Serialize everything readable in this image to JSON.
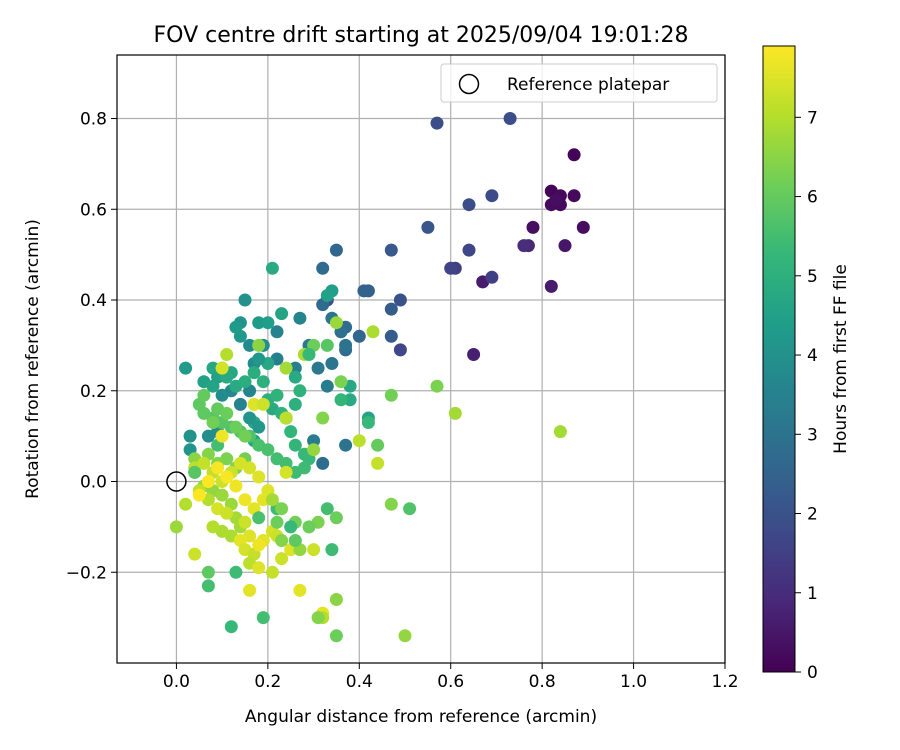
{
  "chart_data": {
    "type": "scatter",
    "title": "FOV centre drift starting at 2025/09/04 19:01:28",
    "xlabel": "Angular distance from reference (arcmin)",
    "ylabel": "Rotation from reference (arcmin)",
    "xlim": [
      -0.13,
      1.2
    ],
    "ylim": [
      -0.4,
      0.94
    ],
    "xticks": [
      0.0,
      0.2,
      0.4,
      0.6,
      0.8,
      1.0,
      1.2
    ],
    "xtick_labels": [
      "0.0",
      "0.2",
      "0.4",
      "0.6",
      "0.8",
      "1.0",
      "1.2"
    ],
    "yticks": [
      -0.2,
      0.0,
      0.2,
      0.4,
      0.6,
      0.8
    ],
    "ytick_labels": [
      "−0.2",
      "0.0",
      "0.2",
      "0.4",
      "0.6",
      "0.8"
    ],
    "grid": true,
    "legend": {
      "position": "top-right",
      "label": "Reference platepar"
    },
    "reference_point": {
      "x": 0.0,
      "y": 0.0
    },
    "colorbar": {
      "label": "Hours from first FF file",
      "colormap": "viridis",
      "range": [
        0,
        7.9
      ],
      "ticks": [
        0,
        1,
        2,
        3,
        4,
        5,
        6,
        7
      ],
      "tick_labels": [
        "0",
        "1",
        "2",
        "3",
        "4",
        "5",
        "6",
        "7"
      ]
    },
    "points_note_columns": [
      "x",
      "y",
      "hours"
    ],
    "points": [
      [
        0.87,
        0.72,
        0.1
      ],
      [
        0.82,
        0.64,
        0.1
      ],
      [
        0.84,
        0.63,
        0.2
      ],
      [
        0.87,
        0.63,
        0.2
      ],
      [
        0.82,
        0.61,
        0.2
      ],
      [
        0.84,
        0.61,
        0.2
      ],
      [
        0.83,
        0.62,
        0.3
      ],
      [
        0.89,
        0.56,
        0.3
      ],
      [
        0.85,
        0.52,
        0.5
      ],
      [
        0.78,
        0.56,
        0.3
      ],
      [
        0.77,
        0.52,
        0.9
      ],
      [
        0.76,
        0.52,
        1.0
      ],
      [
        0.82,
        0.43,
        0.6
      ],
      [
        0.67,
        0.44,
        0.6
      ],
      [
        0.65,
        0.28,
        0.7
      ],
      [
        0.69,
        0.45,
        1.5
      ],
      [
        0.61,
        0.47,
        1.5
      ],
      [
        0.6,
        0.47,
        1.6
      ],
      [
        0.64,
        0.51,
        1.7
      ],
      [
        0.69,
        0.63,
        1.8
      ],
      [
        0.64,
        0.61,
        1.9
      ],
      [
        0.57,
        0.79,
        1.9
      ],
      [
        0.73,
        0.8,
        1.9
      ],
      [
        0.55,
        0.56,
        2.1
      ],
      [
        0.47,
        0.51,
        2.2
      ],
      [
        0.49,
        0.4,
        2.0
      ],
      [
        0.49,
        0.29,
        1.7
      ],
      [
        0.47,
        0.38,
        2.3
      ],
      [
        0.47,
        0.32,
        2.3
      ],
      [
        0.42,
        0.42,
        2.4
      ],
      [
        0.41,
        0.42,
        2.5
      ],
      [
        0.4,
        0.32,
        2.6
      ],
      [
        0.35,
        0.51,
        2.6
      ],
      [
        0.32,
        0.47,
        2.7
      ],
      [
        0.33,
        0.4,
        1.9
      ],
      [
        0.32,
        0.39,
        2.7
      ],
      [
        0.37,
        0.34,
        2.8
      ],
      [
        0.36,
        0.33,
        2.9
      ],
      [
        0.37,
        0.29,
        2.8
      ],
      [
        0.37,
        0.3,
        3.0
      ],
      [
        0.34,
        0.36,
        3.1
      ],
      [
        0.34,
        0.26,
        3.1
      ],
      [
        0.31,
        0.25,
        3.2
      ],
      [
        0.33,
        0.21,
        3.3
      ],
      [
        0.37,
        0.08,
        3.0
      ],
      [
        0.32,
        0.04,
        2.8
      ],
      [
        0.3,
        0.09,
        3.3
      ],
      [
        0.29,
        0.3,
        3.2
      ],
      [
        0.27,
        0.36,
        3.6
      ],
      [
        0.26,
        0.25,
        3.4
      ],
      [
        0.24,
        0.14,
        3.5
      ],
      [
        0.22,
        0.33,
        3.5
      ],
      [
        0.22,
        0.27,
        3.4
      ],
      [
        0.21,
        0.47,
        4.8
      ],
      [
        0.15,
        0.4,
        4.0
      ],
      [
        0.19,
        0.3,
        3.9
      ],
      [
        0.17,
        0.26,
        3.8
      ],
      [
        0.16,
        0.3,
        3.8
      ],
      [
        0.14,
        0.35,
        4.1
      ],
      [
        0.14,
        0.32,
        4.2
      ],
      [
        0.13,
        0.34,
        4.3
      ],
      [
        0.18,
        0.35,
        4.3
      ],
      [
        0.2,
        0.35,
        4.4
      ],
      [
        0.23,
        0.37,
        4.6
      ],
      [
        0.34,
        0.42,
        4.4
      ],
      [
        0.33,
        0.41,
        4.5
      ],
      [
        0.42,
        0.14,
        4.6
      ],
      [
        0.42,
        0.13,
        5.3
      ],
      [
        0.38,
        0.18,
        4.8
      ],
      [
        0.38,
        0.21,
        4.7
      ],
      [
        0.36,
        0.18,
        5.2
      ],
      [
        0.24,
        0.14,
        4.9
      ],
      [
        0.21,
        0.16,
        4.8
      ],
      [
        0.17,
        0.13,
        4.7
      ],
      [
        0.17,
        0.09,
        4.6
      ],
      [
        0.16,
        0.2,
        3.6
      ],
      [
        0.14,
        0.17,
        3.5
      ],
      [
        0.12,
        0.2,
        3.7
      ],
      [
        0.1,
        0.19,
        3.8
      ],
      [
        0.09,
        0.11,
        3.9
      ],
      [
        0.07,
        0.1,
        3.9
      ],
      [
        0.03,
        0.1,
        4.0
      ],
      [
        0.03,
        0.07,
        4.1
      ],
      [
        0.02,
        0.25,
        4.3
      ],
      [
        0.06,
        0.22,
        4.5
      ],
      [
        0.08,
        0.21,
        4.6
      ],
      [
        0.08,
        0.25,
        4.7
      ],
      [
        0.09,
        0.23,
        4.5
      ],
      [
        0.12,
        0.24,
        4.7
      ],
      [
        0.1,
        0.25,
        4.7
      ],
      [
        0.11,
        0.23,
        4.8
      ],
      [
        0.13,
        0.21,
        4.8
      ],
      [
        0.15,
        0.22,
        4.9
      ],
      [
        0.17,
        0.24,
        4.9
      ],
      [
        0.19,
        0.22,
        5.0
      ],
      [
        0.2,
        0.18,
        5.0
      ],
      [
        0.22,
        0.19,
        5.1
      ],
      [
        0.23,
        0.15,
        5.1
      ],
      [
        0.25,
        0.11,
        5.2
      ],
      [
        0.26,
        0.08,
        5.2
      ],
      [
        0.28,
        0.06,
        5.3
      ],
      [
        0.29,
        0.05,
        5.3
      ],
      [
        0.28,
        0.03,
        5.4
      ],
      [
        0.26,
        0.02,
        5.4
      ],
      [
        0.24,
        0.04,
        5.5
      ],
      [
        0.22,
        0.05,
        5.5
      ],
      [
        0.2,
        0.07,
        5.6
      ],
      [
        0.18,
        0.08,
        5.6
      ],
      [
        0.16,
        0.1,
        5.7
      ],
      [
        0.14,
        0.11,
        5.7
      ],
      [
        0.12,
        0.12,
        5.7
      ],
      [
        0.1,
        0.13,
        5.8
      ],
      [
        0.08,
        0.14,
        5.8
      ],
      [
        0.06,
        0.15,
        5.9
      ],
      [
        0.05,
        0.17,
        5.9
      ],
      [
        0.06,
        0.19,
        6.0
      ],
      [
        0.09,
        0.16,
        6.0
      ],
      [
        0.11,
        0.15,
        6.1
      ],
      [
        0.13,
        0.12,
        6.1
      ],
      [
        0.15,
        0.1,
        6.2
      ],
      [
        0.15,
        0.05,
        6.2
      ],
      [
        0.13,
        0.03,
        6.3
      ],
      [
        0.11,
        0.05,
        6.3
      ],
      [
        0.09,
        0.04,
        6.4
      ],
      [
        0.07,
        0.06,
        6.4
      ],
      [
        0.04,
        0.05,
        6.5
      ],
      [
        0.04,
        0.02,
        6.5
      ],
      [
        0.06,
        -0.01,
        6.6
      ],
      [
        0.08,
        -0.02,
        6.6
      ],
      [
        0.1,
        -0.03,
        6.7
      ],
      [
        0.12,
        -0.05,
        6.7
      ],
      [
        0.13,
        -0.08,
        6.8
      ],
      [
        0.14,
        -0.1,
        6.8
      ],
      [
        0.12,
        -0.12,
        6.9
      ],
      [
        0.1,
        -0.11,
        6.9
      ],
      [
        0.08,
        -0.1,
        7.0
      ],
      [
        0.07,
        -0.04,
        7.0
      ],
      [
        0.05,
        -0.02,
        7.1
      ],
      [
        0.04,
        0.03,
        7.1
      ],
      [
        0.06,
        0.04,
        7.2
      ],
      [
        0.08,
        0.02,
        7.2
      ],
      [
        0.1,
        0.0,
        7.3
      ],
      [
        0.12,
        0.02,
        7.3
      ],
      [
        0.14,
        0.04,
        7.4
      ],
      [
        0.16,
        0.03,
        7.4
      ],
      [
        0.18,
        0.01,
        7.5
      ],
      [
        0.2,
        -0.02,
        7.5
      ],
      [
        0.19,
        -0.04,
        7.6
      ],
      [
        0.17,
        -0.06,
        7.6
      ],
      [
        0.15,
        -0.04,
        7.7
      ],
      [
        0.13,
        -0.01,
        7.7
      ],
      [
        0.11,
        0.01,
        7.8
      ],
      [
        0.09,
        0.03,
        7.8
      ],
      [
        0.07,
        0.0,
        7.9
      ],
      [
        0.05,
        -0.03,
        7.9
      ],
      [
        0.09,
        -0.06,
        7.4
      ],
      [
        0.11,
        -0.07,
        7.3
      ],
      [
        0.15,
        -0.09,
        7.3
      ],
      [
        0.16,
        -0.12,
        7.5
      ],
      [
        0.14,
        -0.13,
        7.6
      ],
      [
        0.15,
        -0.15,
        7.4
      ],
      [
        0.17,
        -0.16,
        7.2
      ],
      [
        0.16,
        -0.18,
        7.1
      ],
      [
        0.18,
        -0.19,
        7.5
      ],
      [
        0.19,
        -0.13,
        7.6
      ],
      [
        0.18,
        -0.14,
        7.7
      ],
      [
        0.21,
        -0.11,
        7.4
      ],
      [
        0.22,
        -0.12,
        7.3
      ],
      [
        0.25,
        -0.15,
        7.5
      ],
      [
        0.23,
        -0.17,
        7.3
      ],
      [
        0.21,
        -0.2,
        7.2
      ],
      [
        0.16,
        -0.24,
        7.6
      ],
      [
        0.27,
        -0.24,
        7.6
      ],
      [
        0.32,
        -0.29,
        7.6
      ],
      [
        0.32,
        -0.3,
        7.0
      ],
      [
        0.31,
        -0.3,
        6.4
      ],
      [
        0.35,
        -0.26,
        6.5
      ],
      [
        0.35,
        -0.34,
        6.1
      ],
      [
        0.5,
        -0.34,
        6.6
      ],
      [
        0.51,
        -0.06,
        5.7
      ],
      [
        0.47,
        -0.05,
        6.4
      ],
      [
        0.44,
        0.04,
        7.2
      ],
      [
        0.44,
        0.08,
        6.0
      ],
      [
        0.47,
        0.19,
        6.2
      ],
      [
        0.57,
        0.21,
        6.3
      ],
      [
        0.61,
        0.15,
        6.8
      ],
      [
        0.84,
        0.11,
        6.8
      ],
      [
        0.43,
        0.33,
        6.9
      ],
      [
        0.4,
        0.09,
        7.1
      ],
      [
        0.36,
        0.22,
        6.3
      ],
      [
        0.35,
        0.35,
        6.7
      ],
      [
        0.3,
        0.3,
        6.1
      ],
      [
        0.32,
        0.14,
        6.4
      ],
      [
        0.3,
        0.07,
        6.6
      ],
      [
        0.31,
        -0.09,
        6.3
      ],
      [
        0.29,
        -0.1,
        6.1
      ],
      [
        0.33,
        -0.06,
        5.5
      ],
      [
        0.35,
        -0.08,
        6.1
      ],
      [
        0.34,
        -0.15,
        5.4
      ],
      [
        0.3,
        -0.15,
        7.3
      ],
      [
        0.27,
        -0.15,
        6.6
      ],
      [
        0.26,
        -0.09,
        6.2
      ],
      [
        0.26,
        -0.13,
        5.9
      ],
      [
        0.25,
        -0.1,
        5.3
      ],
      [
        0.23,
        -0.13,
        6.4
      ],
      [
        0.22,
        -0.06,
        5.4
      ],
      [
        0.22,
        -0.09,
        6.1
      ],
      [
        0.23,
        -0.06,
        6.3
      ],
      [
        0.21,
        -0.04,
        6.8
      ],
      [
        0.18,
        -0.08,
        5.6
      ],
      [
        0.19,
        -0.3,
        5.5
      ],
      [
        0.13,
        -0.2,
        5.4
      ],
      [
        0.12,
        -0.32,
        5.3
      ],
      [
        0.07,
        -0.23,
        5.5
      ],
      [
        0.07,
        -0.2,
        5.9
      ],
      [
        0.04,
        -0.16,
        7.3
      ],
      [
        0.0,
        -0.1,
        6.7
      ],
      [
        0.02,
        -0.05,
        7.0
      ],
      [
        0.04,
        0.02,
        5.8
      ],
      [
        0.09,
        0.08,
        5.5
      ],
      [
        0.1,
        0.1,
        7.7
      ],
      [
        0.08,
        0.13,
        6.2
      ],
      [
        0.1,
        0.25,
        7.4
      ],
      [
        0.11,
        0.28,
        7.0
      ],
      [
        0.18,
        0.3,
        6.5
      ],
      [
        0.17,
        0.17,
        7.5
      ],
      [
        0.19,
        0.17,
        7.3
      ],
      [
        0.24,
        0.25,
        6.8
      ],
      [
        0.24,
        0.14,
        7.1
      ],
      [
        0.24,
        0.02,
        7.4
      ],
      [
        0.28,
        0.28,
        6.9
      ],
      [
        0.33,
        0.3,
        5.8
      ],
      [
        0.29,
        0.28,
        5.3
      ],
      [
        0.27,
        0.2,
        5.1
      ],
      [
        0.26,
        0.17,
        5.0
      ],
      [
        0.26,
        0.23,
        4.8
      ],
      [
        0.2,
        0.26,
        4.7
      ],
      [
        0.18,
        0.12,
        4.2
      ],
      [
        0.16,
        0.14,
        4.1
      ],
      [
        0.18,
        0.27,
        4.2
      ]
    ]
  }
}
